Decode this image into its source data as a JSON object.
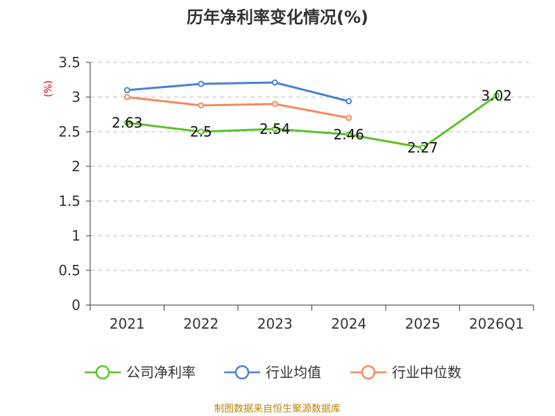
{
  "chart_data": {
    "type": "line",
    "title": "历年净利率变化情况(%)",
    "ylabel": "(%)",
    "xlabel": "",
    "categories": [
      "2021",
      "2022",
      "2023",
      "2024",
      "2025",
      "2026Q1"
    ],
    "ylim": [
      0,
      3.5
    ],
    "yticks": [
      "0",
      "0.5",
      "1",
      "1.5",
      "2",
      "2.5",
      "3",
      "3.5"
    ],
    "grid": true,
    "legend_position": "bottom",
    "series": [
      {
        "name": "公司净利率",
        "color": "#5bc12a",
        "values": [
          2.63,
          2.5,
          2.54,
          2.46,
          2.27,
          3.02
        ],
        "data_labels": [
          "2.63",
          "2.5",
          "2.54",
          "2.46",
          "2.27",
          "3.02"
        ]
      },
      {
        "name": "行业均值",
        "color": "#4a7fd8",
        "values": [
          3.1,
          3.19,
          3.21,
          2.94,
          null,
          null
        ]
      },
      {
        "name": "行业中位数",
        "color": "#f5895a",
        "values": [
          3.0,
          2.88,
          2.9,
          2.7,
          null,
          null
        ]
      }
    ]
  },
  "source": "制图数据来自恒生聚源数据库"
}
